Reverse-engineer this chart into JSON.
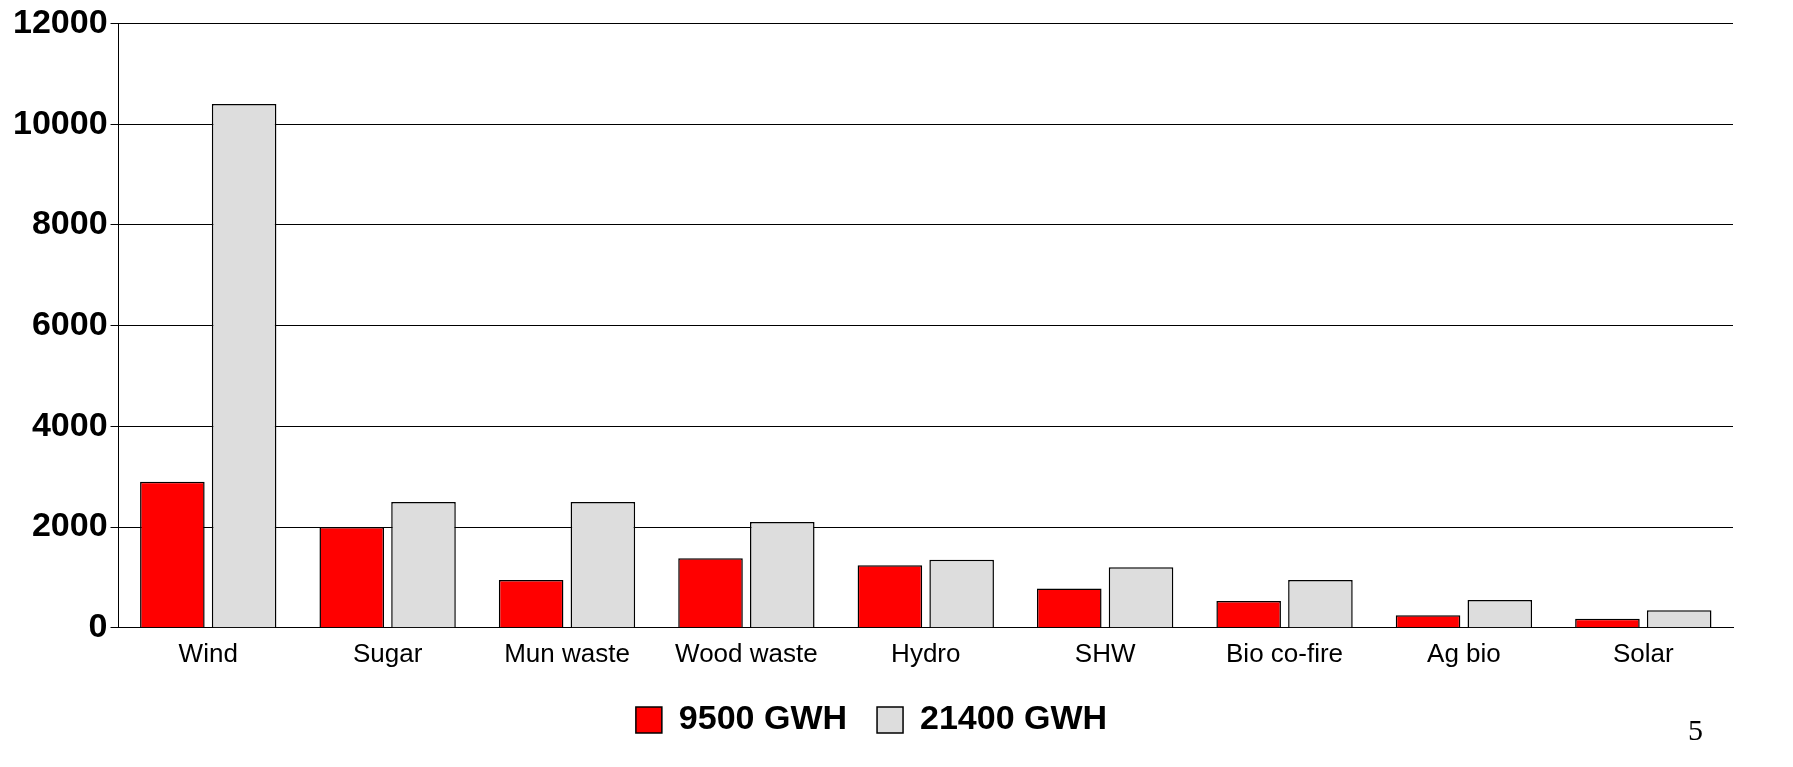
{
  "chart_data": {
    "type": "bar",
    "categories": [
      "Wind",
      "Sugar",
      "Mun waste",
      "Wood waste",
      "Hydro",
      "SHW",
      "Bio co-fire",
      "Ag bio",
      "Solar"
    ],
    "series": [
      {
        "name": "9500 GWH",
        "color": "#ff0000",
        "values": [
          2900,
          2000,
          950,
          1380,
          1240,
          780,
          530,
          250,
          180
        ]
      },
      {
        "name": "21400 GWH",
        "color": "#dddddd",
        "values": [
          10400,
          2500,
          2500,
          2100,
          1350,
          1200,
          950,
          550,
          350
        ]
      }
    ],
    "ylim": [
      0,
      12000
    ],
    "yticks": [
      0,
      2000,
      4000,
      6000,
      8000,
      10000,
      12000
    ],
    "grid": "y",
    "legend": "bottom",
    "annotations": [
      "5"
    ]
  }
}
